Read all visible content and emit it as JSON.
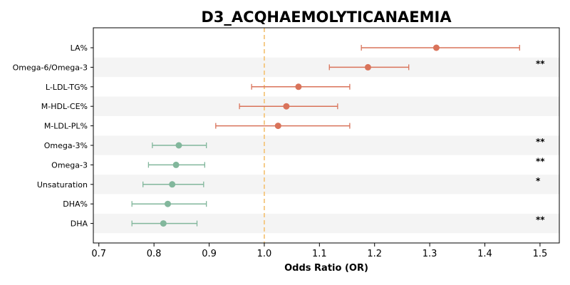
{
  "chart_data": {
    "type": "forest",
    "title": "D3_ACQHAEMOLYTICANAEMIA",
    "xlabel": "Odds Ratio (OR)",
    "xlim": [
      0.69,
      1.535
    ],
    "xticks": [
      "0.7",
      "0.8",
      "0.9",
      "1.0",
      "1.1",
      "1.2",
      "1.3",
      "1.4",
      "1.5"
    ],
    "reference_line": 1.0,
    "colors": {
      "positive": "#d9735a",
      "negative": "#82b79c",
      "reference": "#f5c77e",
      "stripe": "#f4f4f4"
    },
    "rows": [
      {
        "label": "LA%",
        "or": 1.312,
        "lo": 1.176,
        "hi": 1.463,
        "sig": ""
      },
      {
        "label": "Omega-6/Omega-3",
        "or": 1.188,
        "lo": 1.118,
        "hi": 1.262,
        "sig": "**"
      },
      {
        "label": "L-LDL-TG%",
        "or": 1.062,
        "lo": 0.977,
        "hi": 1.155,
        "sig": ""
      },
      {
        "label": "M-HDL-CE%",
        "or": 1.04,
        "lo": 0.955,
        "hi": 1.133,
        "sig": ""
      },
      {
        "label": "M-LDL-PL%",
        "or": 1.025,
        "lo": 0.912,
        "hi": 1.155,
        "sig": ""
      },
      {
        "label": "Omega-3%",
        "or": 0.845,
        "lo": 0.797,
        "hi": 0.895,
        "sig": "**"
      },
      {
        "label": "Omega-3",
        "or": 0.84,
        "lo": 0.79,
        "hi": 0.892,
        "sig": "**"
      },
      {
        "label": "Unsaturation",
        "or": 0.833,
        "lo": 0.78,
        "hi": 0.89,
        "sig": "*"
      },
      {
        "label": "DHA%",
        "or": 0.825,
        "lo": 0.76,
        "hi": 0.895,
        "sig": ""
      },
      {
        "label": "DHA",
        "or": 0.817,
        "lo": 0.76,
        "hi": 0.878,
        "sig": "**"
      }
    ]
  }
}
